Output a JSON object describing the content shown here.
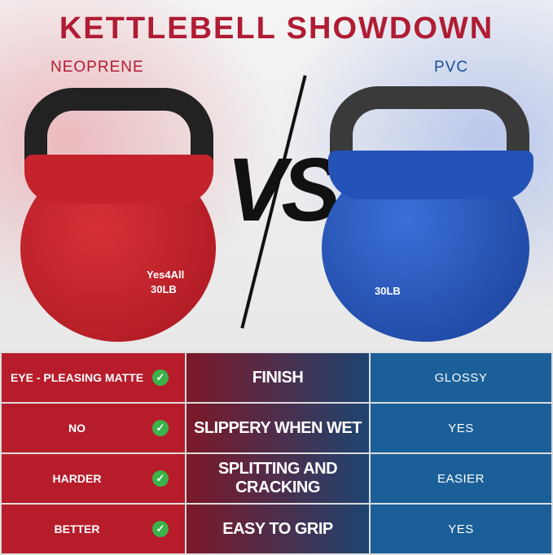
{
  "title": "KETTLEBELL SHOWDOWN",
  "left_label": "NEOPRENE",
  "right_label": "PVC",
  "vs_text": "VS",
  "left_product": {
    "brand": "Yes4All",
    "weight": "30LB",
    "color": "#c9242f"
  },
  "right_product": {
    "weight": "30LB",
    "color": "#1f4fb0"
  },
  "rows": [
    {
      "left": "EYE - PLEASING MATTE",
      "feature": "FINISH",
      "right": "GLOSSY"
    },
    {
      "left": "NO",
      "feature": "SLIPPERY WHEN WET",
      "right": "YES"
    },
    {
      "left": "HARDER",
      "feature": "SPLITTING AND CRACKING",
      "right": "EASIER"
    },
    {
      "left": "BETTER",
      "feature": "EASY TO GRIP",
      "right": "YES"
    }
  ],
  "colors": {
    "title": "#b01c33",
    "left": "#b71c2b",
    "right": "#1b5f98",
    "check": "#3bb34a"
  }
}
